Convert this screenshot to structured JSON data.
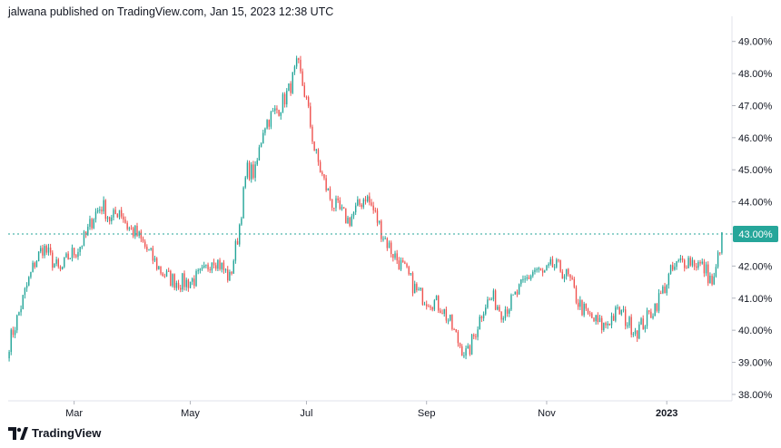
{
  "header": {
    "attribution": "jalwana published on TradingView.com, Jan 15, 2023 12:38 UTC"
  },
  "footer": {
    "brand": "TradingView",
    "logo_icon": "tradingview-logo-icon"
  },
  "colors": {
    "up": "#26a69a",
    "down": "#ef5350",
    "grid": "#e0e3eb",
    "text": "#131722",
    "price_line": "#26a69a"
  },
  "chart_data": {
    "type": "candlestick",
    "title": "",
    "unit": "%",
    "ylim": [
      37.8,
      49.5
    ],
    "y_ticks": [
      "49.00%",
      "48.00%",
      "47.00%",
      "46.00%",
      "45.00%",
      "44.00%",
      "43.00%",
      "42.00%",
      "41.00%",
      "40.00%",
      "39.00%",
      "38.00%"
    ],
    "y_tick_values": [
      49,
      48,
      47,
      46,
      45,
      44,
      43,
      42,
      41,
      40,
      39,
      38
    ],
    "x_ticks": [
      "Mar",
      "May",
      "Jul",
      "Sep",
      "Nov",
      "2023"
    ],
    "x_tick_positions": [
      33,
      92,
      151,
      212,
      273,
      334
    ],
    "last_price": 43.0,
    "last_price_label": "43.00%",
    "closes": [
      39.6,
      40.4,
      41.3,
      42.1,
      42.6,
      42.2,
      41.8,
      42.3,
      42.5,
      42.9,
      43.6,
      43.9,
      43.4,
      43.8,
      43.2,
      43.0,
      42.6,
      42.2,
      41.8,
      41.6,
      41.5,
      41.5,
      41.6,
      41.8,
      42.3,
      42.0,
      41.6,
      43.0,
      45.0,
      44.9,
      46.4,
      46.7,
      47.0,
      47.5,
      48.3,
      47.2,
      45.6,
      44.7,
      44.0,
      43.7,
      43.4,
      43.8,
      44.2,
      43.7,
      43.0,
      42.5,
      42.1,
      41.7,
      41.2,
      41.0,
      40.9,
      40.7,
      40.2,
      39.6,
      39.2,
      40.0,
      40.8,
      41.0,
      40.6,
      40.8,
      41.2,
      41.6,
      41.9,
      41.7,
      42.0,
      41.9,
      41.6,
      40.9,
      40.5,
      40.3,
      40.1,
      40.4,
      40.6,
      40.2,
      40.0,
      40.3,
      40.7,
      41.2,
      41.8,
      42.1,
      42.2,
      42.1,
      41.9,
      41.4,
      43.0
    ]
  }
}
